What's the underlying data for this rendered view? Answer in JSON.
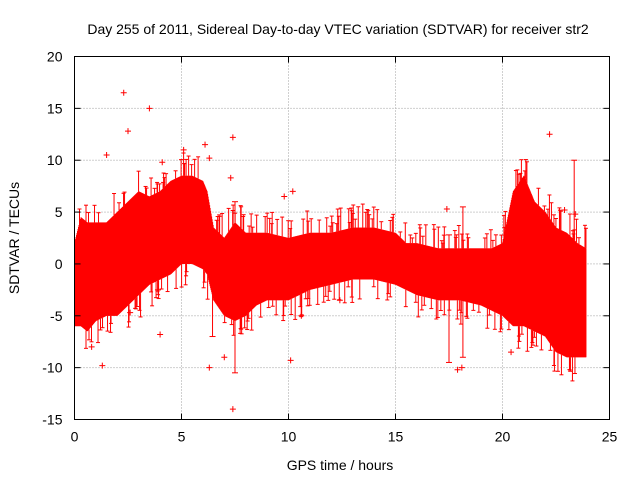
{
  "chart_data": {
    "type": "line",
    "title": "Day 255 of 2011, Sidereal Day-to-day VTEC variation (SDTVAR) for receiver str2",
    "xlabel": "GPS time / hours",
    "ylabel": "SDTVAR / TECUs",
    "xlim": [
      0,
      25
    ],
    "ylim": [
      -15,
      20
    ],
    "xticks": [
      "0",
      "5",
      "10",
      "15",
      "20",
      "25"
    ],
    "yticks": [
      "-15",
      "-10",
      "-5",
      "0",
      "5",
      "10",
      "15",
      "20"
    ],
    "grid": true,
    "series_color": "#ff0000",
    "series": [
      {
        "name": "SDTVAR",
        "style": "points-with-errorbars",
        "envelope": {
          "x": [
            0.0,
            0.3,
            0.6,
            1.0,
            1.5,
            2.0,
            2.5,
            3.0,
            3.5,
            4.0,
            4.5,
            5.0,
            5.5,
            6.0,
            6.2,
            6.5,
            7.0,
            7.5,
            8.0,
            8.5,
            9.0,
            10.0,
            11.0,
            12.0,
            13.0,
            14.0,
            15.0,
            15.5,
            16.0,
            17.0,
            18.0,
            19.0,
            19.5,
            20.0,
            20.5,
            21.0,
            21.5,
            22.0,
            22.5,
            23.0,
            23.5,
            23.9
          ],
          "upper": [
            2.0,
            4.5,
            4.0,
            4.0,
            4.0,
            5.0,
            6.0,
            7.0,
            6.5,
            7.0,
            8.0,
            8.5,
            8.5,
            8.0,
            7.0,
            3.5,
            2.5,
            4.0,
            3.0,
            3.0,
            3.0,
            2.5,
            3.0,
            3.0,
            3.5,
            3.5,
            3.0,
            2.0,
            2.0,
            1.5,
            1.5,
            1.5,
            1.5,
            2.0,
            7.0,
            8.5,
            6.0,
            5.0,
            3.5,
            3.0,
            2.0,
            1.5
          ],
          "lower": [
            -6.0,
            -6.0,
            -6.5,
            -5.5,
            -5.0,
            -5.0,
            -4.0,
            -3.0,
            -2.0,
            -1.5,
            -1.0,
            0.0,
            0.0,
            -0.5,
            -1.0,
            -3.5,
            -5.0,
            -5.5,
            -5.0,
            -4.0,
            -3.5,
            -3.5,
            -2.5,
            -2.0,
            -1.5,
            -1.5,
            -2.0,
            -2.5,
            -3.0,
            -3.5,
            -3.5,
            -4.0,
            -4.5,
            -5.0,
            -6.0,
            -6.0,
            -6.5,
            -7.0,
            -8.5,
            -9.0,
            -9.0,
            -9.0
          ]
        },
        "outliers": [
          {
            "x": 2.3,
            "y": 16.5
          },
          {
            "x": 3.5,
            "y": 15.0
          },
          {
            "x": 2.5,
            "y": 12.8
          },
          {
            "x": 6.1,
            "y": 11.5
          },
          {
            "x": 7.4,
            "y": 12.2
          },
          {
            "x": 1.5,
            "y": 10.5
          },
          {
            "x": 4.1,
            "y": 9.8
          },
          {
            "x": 6.3,
            "y": 10.2
          },
          {
            "x": 7.3,
            "y": 8.3
          },
          {
            "x": 1.3,
            "y": -9.8
          },
          {
            "x": 4.0,
            "y": -6.8
          },
          {
            "x": 3.9,
            "y": -2.5
          },
          {
            "x": 6.3,
            "y": -10.0
          },
          {
            "x": 7.4,
            "y": -14.0
          },
          {
            "x": 10.1,
            "y": -9.3
          },
          {
            "x": 10.6,
            "y": -5.0
          },
          {
            "x": 12.4,
            "y": -3.5
          },
          {
            "x": 18.1,
            "y": -10.0
          },
          {
            "x": 17.9,
            "y": -10.2
          },
          {
            "x": 17.4,
            "y": 5.3
          },
          {
            "x": 22.2,
            "y": 12.5
          },
          {
            "x": 23.4,
            "y": 4.8
          },
          {
            "x": 22.9,
            "y": 5.2
          },
          {
            "x": 9.8,
            "y": 6.5
          },
          {
            "x": 10.2,
            "y": 7.0
          },
          {
            "x": 7.0,
            "y": -9.0
          },
          {
            "x": 0.8,
            "y": -8.0
          },
          {
            "x": 5.1,
            "y": 11.0
          },
          {
            "x": 2.6,
            "y": -4.7
          },
          {
            "x": 20.4,
            "y": -8.5
          }
        ],
        "errorbars": [
          {
            "x": 23.35,
            "low": -8.5,
            "high": 10.0
          },
          {
            "x": 18.15,
            "low": -9.0,
            "high": 5.5
          },
          {
            "x": 7.5,
            "low": -10.5,
            "high": 6.0
          },
          {
            "x": 6.45,
            "low": -7.0,
            "high": 3.0
          },
          {
            "x": 17.5,
            "low": -9.5,
            "high": 2.8
          }
        ]
      }
    ]
  }
}
